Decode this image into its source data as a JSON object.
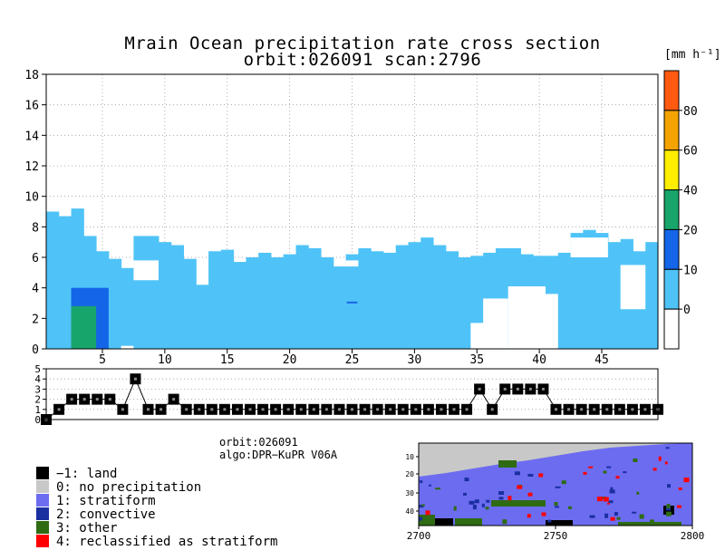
{
  "title": {
    "line1": "Mrain Ocean precipitation rate cross section",
    "line2": "orbit:026091    scan:2796"
  },
  "colorbar": {
    "unit": "[mm h⁻¹]",
    "ticks": [
      "0",
      "10",
      "20",
      "40",
      "60",
      "80"
    ],
    "colors": [
      "#ffffff",
      "#4fc3f7",
      "#1565e8",
      "#18a56c",
      "#ffee00",
      "#f5a300",
      "#ff5a10"
    ]
  },
  "info": {
    "orbit": "orbit:026091",
    "algo": "algo:DPR−KuPR V06A"
  },
  "legend": [
    {
      "code": "−1: land",
      "color": "#000000"
    },
    {
      "code": "0: no precipitation",
      "color": "#c8c8c8"
    },
    {
      "code": "1: stratiform",
      "color": "#6c6cf0"
    },
    {
      "code": "2: convective",
      "color": "#1a2fa0"
    },
    {
      "code": "3: other",
      "color": "#2e6b12"
    },
    {
      "code": "4: reclassified as stratiform",
      "color": "#ff0000"
    }
  ],
  "chart_data": [
    {
      "type": "heatmap",
      "title": "Mrain Ocean precipitation rate cross section",
      "xlabel": "",
      "ylabel": "",
      "xlim": [
        1,
        49
      ],
      "ylim": [
        0,
        18
      ],
      "xticks": [
        5,
        10,
        15,
        20,
        25,
        30,
        35,
        40,
        45
      ],
      "yticks": [
        0,
        2,
        4,
        6,
        8,
        10,
        12,
        14,
        16,
        18
      ],
      "grid": true,
      "columns_top": [
        9.0,
        8.7,
        9.2,
        7.4,
        6.4,
        5.9,
        5.3,
        7.4,
        7.4,
        7.0,
        6.8,
        5.9,
        4.2,
        6.4,
        6.5,
        5.7,
        6.0,
        6.3,
        6.0,
        6.2,
        6.8,
        6.6,
        6.0,
        5.4,
        6.2,
        6.6,
        6.4,
        6.3,
        6.8,
        7.0,
        7.3,
        6.8,
        6.4,
        6.0,
        6.1,
        6.3,
        6.6,
        6.6,
        6.2,
        6.1,
        6.1,
        6.3,
        7.6,
        7.8,
        7.6,
        7.0,
        7.2,
        6.4,
        7.0
      ],
      "convective_region": {
        "x": [
          3,
          5
        ],
        "y": [
          0,
          4.0
        ],
        "max_rate": "10-20"
      },
      "other_region": {
        "x": [
          3,
          4
        ],
        "y": [
          0,
          3.2
        ],
        "rate": "10-20"
      }
    },
    {
      "type": "line",
      "title": "",
      "xlim": [
        1,
        49
      ],
      "ylim": [
        0,
        5
      ],
      "yticks": [
        0,
        1,
        2,
        3,
        4,
        5
      ],
      "values": [
        0,
        1,
        2,
        2,
        2,
        2,
        1,
        4,
        1,
        1,
        2,
        1,
        1,
        1,
        1,
        1,
        1,
        1,
        1,
        1,
        1,
        1,
        1,
        1,
        1,
        1,
        1,
        1,
        1,
        1,
        1,
        1,
        1,
        1,
        3,
        1,
        3,
        3,
        3,
        3,
        1,
        1,
        1,
        1,
        1,
        1,
        1,
        1,
        1
      ]
    },
    {
      "type": "heatmap",
      "title": "",
      "xlim": [
        2700,
        2800
      ],
      "xticks": [
        2700,
        2750,
        2800
      ],
      "yticks": [
        10,
        20,
        30,
        40
      ],
      "legend": "left"
    }
  ]
}
